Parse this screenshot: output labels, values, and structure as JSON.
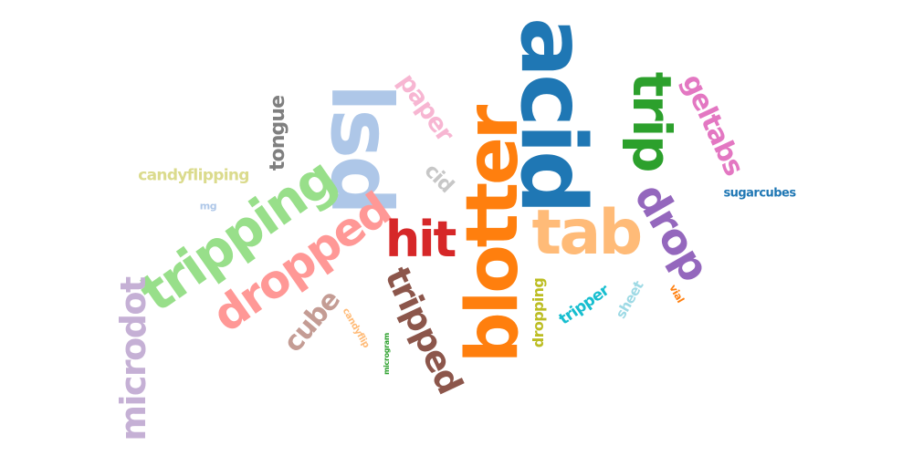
{
  "words": [
    {
      "text": "acid",
      "color": "#1f77b4"
    },
    {
      "text": "blotter",
      "color": "#ff7f0e"
    },
    {
      "text": "lsd",
      "color": "#aec7e8"
    },
    {
      "text": "tab",
      "color": "#ffbb78"
    },
    {
      "text": "tripping",
      "color": "#98df8a"
    },
    {
      "text": "trip",
      "color": "#2ca02c"
    },
    {
      "text": "dropped",
      "color": "#ff9896"
    },
    {
      "text": "hit",
      "color": "#d62728"
    },
    {
      "text": "drop",
      "color": "#9467bd"
    },
    {
      "text": "tripped",
      "color": "#8c564b"
    },
    {
      "text": "microdot",
      "color": "#c5b0d5"
    },
    {
      "text": "geltabs",
      "color": "#e377c2"
    },
    {
      "text": "paper",
      "color": "#f7b6d2"
    },
    {
      "text": "cube",
      "color": "#c49c94"
    },
    {
      "text": "tongue",
      "color": "#7f7f7f"
    },
    {
      "text": "cid",
      "color": "#c7c7c7"
    },
    {
      "text": "candyflipping",
      "color": "#dbdb8d"
    },
    {
      "text": "dropping",
      "color": "#bcbd22"
    },
    {
      "text": "tripper",
      "color": "#17becf"
    },
    {
      "text": "sheet",
      "color": "#9edae5"
    },
    {
      "text": "sugarcubes",
      "color": "#1f77b4"
    },
    {
      "text": "vial",
      "color": "#ff7f0e"
    },
    {
      "text": "candyflip",
      "color": "#ffbb78"
    },
    {
      "text": "microgram",
      "color": "#2ca02c"
    },
    {
      "text": "mg",
      "color": "#aec7e8"
    }
  ]
}
